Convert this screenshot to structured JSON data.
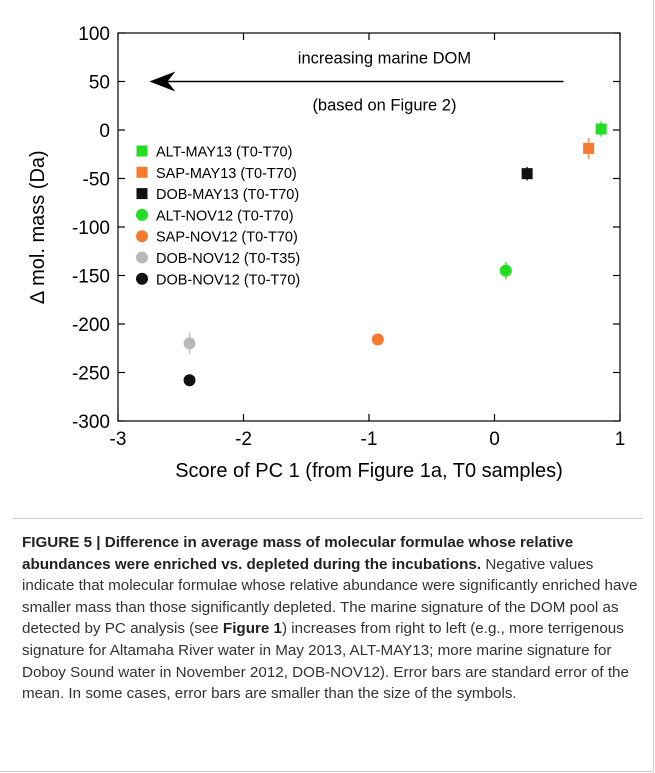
{
  "chart_data": {
    "type": "scatter",
    "title": "",
    "xlabel": "Score of PC 1 (from Figure 1a, T0 samples)",
    "ylabel": "∆ mol. mass (Da)",
    "xlim": [
      -3,
      1
    ],
    "ylim": [
      -300,
      100
    ],
    "xticks": [
      -3,
      -2,
      -1,
      0,
      1
    ],
    "yticks": [
      100,
      50,
      0,
      -50,
      -100,
      -150,
      -200,
      -250,
      -300
    ],
    "xtick_labels": [
      "-3",
      "-2",
      "-1",
      "0",
      "1"
    ],
    "ytick_labels": [
      "100",
      "50",
      "0",
      "-50",
      "-100",
      "-150",
      "-200",
      "-250",
      "-300"
    ],
    "grid": false,
    "legend_position": "left",
    "series": [
      {
        "name": "ALT-MAY13 (T0-T70)",
        "marker": "square",
        "color": "#22dd22",
        "x": 0.85,
        "y": 1,
        "err": 8
      },
      {
        "name": "SAP-MAY13 (T0-T70)",
        "marker": "square",
        "color": "#f47b2e",
        "x": 0.75,
        "y": -19,
        "err": 11
      },
      {
        "name": "DOB-MAY13 (T0-T70)",
        "marker": "square",
        "color": "#111111",
        "x": 0.26,
        "y": -45,
        "err": 7
      },
      {
        "name": "ALT-NOV12 (T0-T70)",
        "marker": "circle",
        "color": "#22dd22",
        "x": 0.09,
        "y": -145,
        "err": 9
      },
      {
        "name": "SAP-NOV12 (T0-T70)",
        "marker": "circle",
        "color": "#f47b2e",
        "x": -0.93,
        "y": -216,
        "err": 0
      },
      {
        "name": "DOB-NOV12 (T0-T35)",
        "marker": "circle",
        "color": "#b8b8b8",
        "x": -2.43,
        "y": -220,
        "err": 11
      },
      {
        "name": "DOB-NOV12 (T0-T70)",
        "marker": "circle",
        "color": "#111111",
        "x": -2.43,
        "y": -258,
        "err": 0
      }
    ],
    "annotations": [
      {
        "text": "increasing marine DOM",
        "kind": "arrow-label"
      },
      {
        "text": "(based on Figure 2)",
        "kind": "arrow-sublabel"
      }
    ],
    "arrow": {
      "x_from": 0.55,
      "x_to": -2.75,
      "y": 50
    }
  },
  "caption": {
    "head": "FIGURE 5 | Difference in average mass of molecular formulae whose relative abundances were enriched vs. depleted during the incubations.",
    "part1": " Negative values indicate that molecular formulae whose relative abundance were significantly enriched have smaller mass than those significantly depleted. The marine signature of the DOM pool as detected by PC analysis (see ",
    "ref": "Figure 1",
    "part2": ") increases from right to left (e.g., more terrigenous signature for Altamaha River water in May 2013, ALT-MAY13; more marine signature for Doboy Sound water in November 2012, DOB-NOV12). Error bars are standard error of the mean. In some cases, error bars are smaller than the size of the symbols."
  }
}
